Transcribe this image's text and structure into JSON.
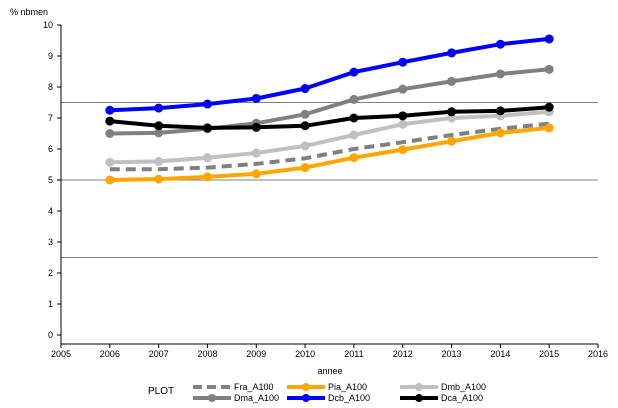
{
  "chart_data": {
    "type": "line",
    "ylabel": "% nbmen",
    "xlabel": "annee",
    "x_ticks": [
      2005,
      2006,
      2007,
      2008,
      2009,
      2010,
      2011,
      2012,
      2013,
      2014,
      2015,
      2016
    ],
    "y_ticks": [
      0,
      1,
      2,
      3,
      4,
      5,
      6,
      7,
      8,
      9,
      10
    ],
    "xlim": [
      2005,
      2016
    ],
    "ylim": [
      0,
      10
    ],
    "reference_lines_y": [
      2.5,
      5,
      7.5
    ],
    "grid": false,
    "legend": {
      "title": "PLOT",
      "placement": "bottom"
    },
    "x": [
      2006,
      2007,
      2008,
      2009,
      2010,
      2011,
      2012,
      2013,
      2014,
      2015
    ],
    "series": [
      {
        "name": "Fra_A100",
        "color": "#808080",
        "dashed": true,
        "markers": false,
        "values": [
          5.35,
          5.35,
          5.4,
          5.52,
          5.7,
          6.0,
          6.22,
          6.45,
          6.65,
          6.82
        ]
      },
      {
        "name": "Pia_A100",
        "color": "#FFA500",
        "dashed": false,
        "markers": true,
        "values": [
          5.0,
          5.03,
          5.1,
          5.2,
          5.4,
          5.72,
          5.98,
          6.25,
          6.52,
          6.68
        ]
      },
      {
        "name": "Dmb_A100",
        "color": "#C0C0C0",
        "dashed": false,
        "markers": true,
        "values": [
          5.57,
          5.6,
          5.72,
          5.87,
          6.1,
          6.45,
          6.8,
          7.0,
          7.07,
          7.2
        ]
      },
      {
        "name": "Dma_A100",
        "color": "#808080",
        "dashed": false,
        "markers": true,
        "values": [
          6.5,
          6.52,
          6.65,
          6.83,
          7.12,
          7.6,
          7.93,
          8.18,
          8.42,
          8.57
        ]
      },
      {
        "name": "Dcb_A100",
        "color": "#0000FF",
        "dashed": false,
        "markers": true,
        "values": [
          7.25,
          7.32,
          7.45,
          7.63,
          7.95,
          8.48,
          8.8,
          9.1,
          9.38,
          9.55
        ]
      },
      {
        "name": "Dca_A100",
        "color": "#000000",
        "dashed": false,
        "markers": true,
        "values": [
          6.9,
          6.75,
          6.68,
          6.7,
          6.75,
          7.0,
          7.07,
          7.2,
          7.23,
          7.35
        ]
      }
    ]
  }
}
